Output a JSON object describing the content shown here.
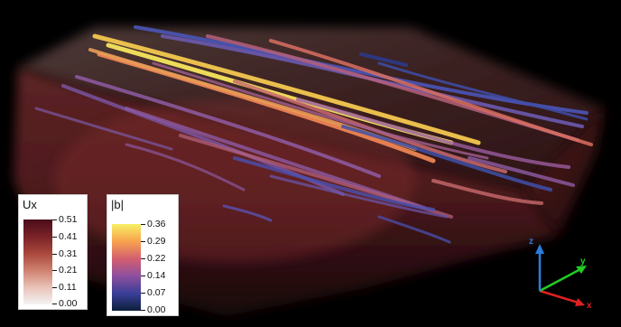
{
  "legend_ux": {
    "title": "Ux",
    "ticks": [
      "0.51",
      "0.41",
      "0.31",
      "0.21",
      "0.11",
      "0.00"
    ],
    "colors": [
      "#4a0d1a",
      "#7a2228",
      "#a9483c",
      "#cf8270",
      "#e9c2b8",
      "#f4f4f4"
    ]
  },
  "legend_b": {
    "title": "|b|",
    "ticks": [
      "0.36",
      "0.29",
      "0.22",
      "0.14",
      "0.07",
      "0.00"
    ],
    "colors": [
      "#f7f065",
      "#f8a24e",
      "#d35f6f",
      "#8e4f9e",
      "#3a3f98",
      "#0c1f3b"
    ]
  },
  "axes": {
    "x": {
      "label": "x",
      "color": "#e02020"
    },
    "y": {
      "label": "y",
      "color": "#22cc22"
    },
    "z": {
      "label": "z",
      "color": "#2a7de0"
    }
  }
}
